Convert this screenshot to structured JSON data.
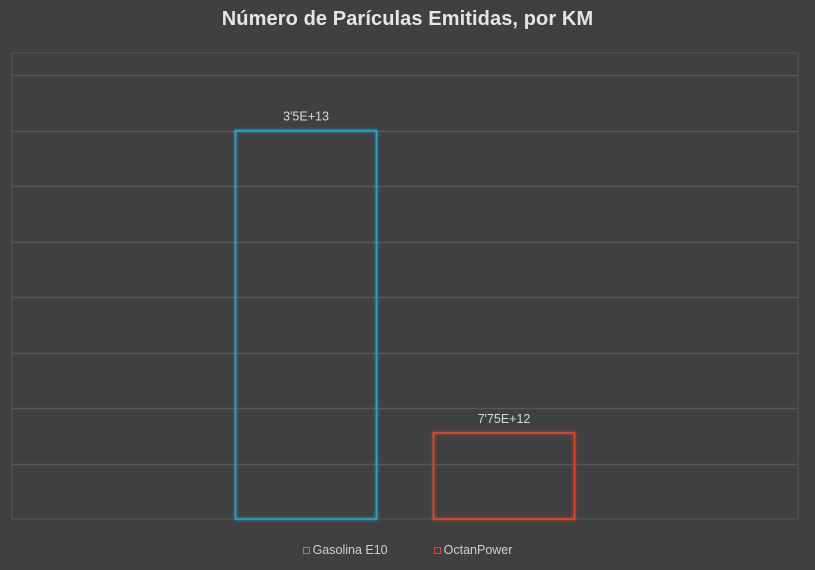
{
  "chart_data": {
    "type": "bar",
    "title": "Número de Parículas Emitidas, por KM",
    "categories": [
      "Gasolina E10",
      "OctanPower"
    ],
    "values": [
      35000000000000,
      7750000000000
    ],
    "data_labels": [
      "3'5E+13",
      "7'75E+12"
    ],
    "colors": [
      "#2aa3cc",
      "#e0482a"
    ],
    "ylim": [
      0,
      42000000000000
    ],
    "grid": true,
    "legend_position": "bottom",
    "xlabel": "",
    "ylabel": ""
  }
}
